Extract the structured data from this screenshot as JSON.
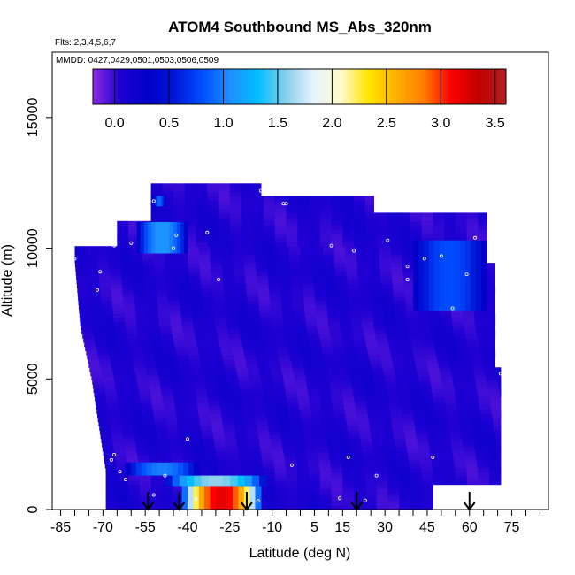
{
  "chart_data": {
    "type": "heatmap",
    "title": "ATOM4 Southbound MS_Abs_320nm",
    "subtitle_flights": "Flts: 2,3,4,5,6,7",
    "subtitle_dates": "MMDD: 0427,0429,0501,0503,0506,0509",
    "xlabel": "Latitude (deg N)",
    "ylabel": "Altitude (m)",
    "xlim": [
      -88,
      88
    ],
    "ylim": [
      0,
      17500
    ],
    "x_ticks": [
      -85,
      -70,
      -55,
      -40,
      -25,
      -10,
      5,
      15,
      30,
      45,
      60,
      75
    ],
    "y_ticks": [
      0,
      5000,
      10000,
      15000
    ],
    "colorbar": {
      "range": [
        -0.2,
        3.6
      ],
      "ticks": [
        "0.0",
        "0.5",
        "1.0",
        "1.5",
        "2.0",
        "2.5",
        "3.0",
        "3.5"
      ],
      "tick_values": [
        0.0,
        0.5,
        1.0,
        1.5,
        2.0,
        2.5,
        3.0,
        3.5
      ],
      "colors": [
        "#8a2be2",
        "#1e00d2",
        "#0000c8",
        "#0018d8",
        "#0050ff",
        "#1e90ff",
        "#00bfff",
        "#87ceeb",
        "#e6f4ff",
        "#fffacd",
        "#ffe600",
        "#ffb000",
        "#ff7f00",
        "#ff0000",
        "#c00000",
        "#b22222"
      ]
    },
    "flight_arrows_lat": [
      -54,
      -43,
      -19,
      20,
      60
    ],
    "features": [
      {
        "lat_min": -42,
        "lat_max": -14,
        "alt_min": 0,
        "alt_max": 900,
        "value": 3.2
      },
      {
        "lat_min": -48,
        "lat_max": -12,
        "alt_min": 900,
        "alt_max": 1300,
        "value": 1.6
      },
      {
        "lat_min": -62,
        "lat_max": -36,
        "alt_min": 1300,
        "alt_max": 1800,
        "value": 1.0
      },
      {
        "lat_min": -58,
        "lat_max": -40,
        "alt_min": 9800,
        "alt_max": 11000,
        "value": 1.1
      },
      {
        "lat_min": -52,
        "lat_max": -48,
        "alt_min": 11600,
        "alt_max": 12000,
        "value": 0.9
      },
      {
        "lat_min": 40,
        "lat_max": 66,
        "alt_min": 7600,
        "alt_max": 10300,
        "value": 0.8
      }
    ]
  }
}
